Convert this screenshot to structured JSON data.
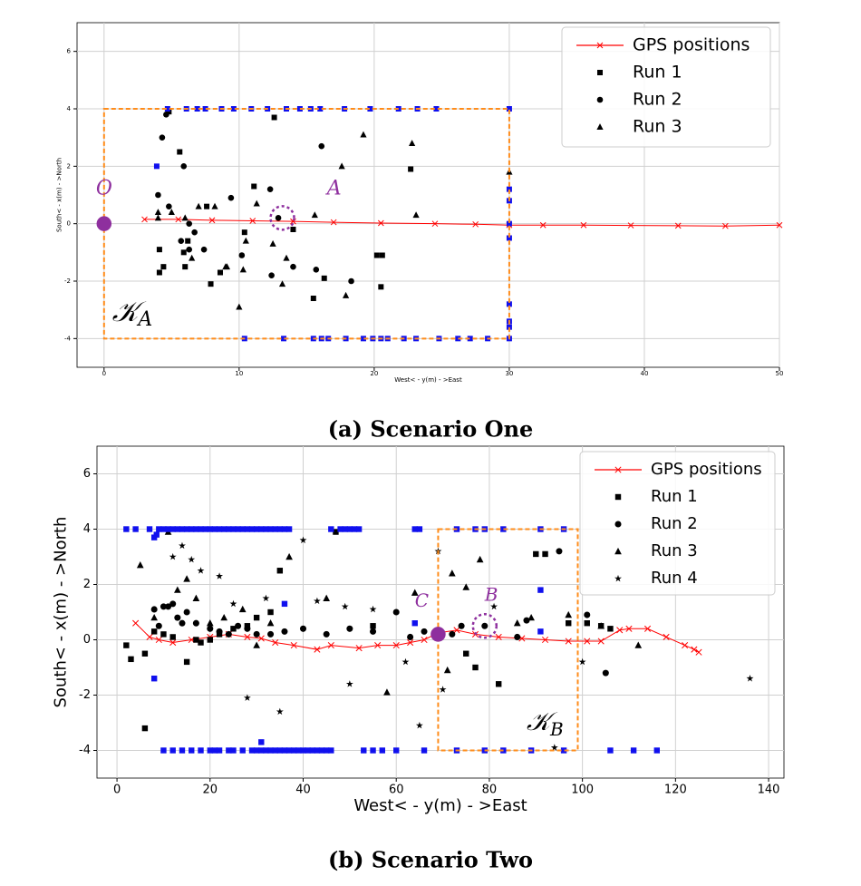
{
  "chart_data": [
    {
      "type": "scatter",
      "caption": "(a) Scenario One",
      "xlabel": "West< - y(m) - >East",
      "ylabel": "South< - x(m) - >North",
      "xlim": [
        -2,
        50
      ],
      "ylim": [
        -5,
        7
      ],
      "xticks": [
        0,
        10,
        20,
        30,
        40,
        50
      ],
      "yticks": [
        -4,
        -2,
        0,
        2,
        4,
        6
      ],
      "grid": true,
      "legend": "upper right",
      "series": [
        {
          "name": "GPS positions",
          "color": "#ff0000",
          "marker": "x",
          "line": true,
          "x": [
            3,
            5.5,
            8,
            11,
            14,
            17,
            20.5,
            24.5,
            27.5,
            30,
            32.5,
            35.5,
            39,
            42.5,
            46,
            50
          ],
          "values": [
            0.15,
            0.15,
            0.12,
            0.1,
            0.08,
            0.05,
            0.02,
            0,
            -0.02,
            -0.05,
            -0.05,
            -0.05,
            -0.06,
            -0.07,
            -0.08,
            -0.05
          ]
        },
        {
          "name": "Run 1",
          "color": "#000000",
          "marker": "square",
          "x": [
            4.8,
            5.6,
            6.2,
            5.9,
            4.1,
            4.4,
            4.1,
            6,
            7.6,
            7.9,
            8.6,
            11.1,
            12.6,
            14,
            15.5,
            16.3,
            20.2,
            20.6,
            20.5,
            22.7,
            10.4
          ],
          "values": [
            3.9,
            2.5,
            -0.6,
            -1,
            -0.9,
            -1.5,
            -1.7,
            -1.5,
            0.6,
            -2.1,
            -1.7,
            1.3,
            3.7,
            -0.2,
            -2.6,
            -1.9,
            -1.1,
            -1.1,
            -2.2,
            1.9,
            -0.3
          ]
        },
        {
          "name": "Run 2",
          "color": "#000000",
          "marker": "circle",
          "x": [
            4.3,
            4,
            4.8,
            5.9,
            6.3,
            6.7,
            5.7,
            6.3,
            7.4,
            9.4,
            10.2,
            12.4,
            12.9,
            12.3,
            14,
            15.7,
            16.1,
            18.3,
            4.6
          ],
          "values": [
            3,
            1,
            0.6,
            2,
            0,
            -0.3,
            -0.6,
            -0.9,
            -0.9,
            0.9,
            -1.1,
            -1.8,
            0.2,
            1.2,
            -1.5,
            -1.6,
            2.7,
            -2,
            3.8
          ]
        },
        {
          "name": "Run 3",
          "color": "#000000",
          "marker": "triangle",
          "x": [
            4,
            4,
            5,
            6,
            7,
            6.5,
            8.2,
            9,
            10,
            10.3,
            10.5,
            11.3,
            12.5,
            13.2,
            13.5,
            15.6,
            17.9,
            19.2,
            17.6,
            22.8,
            23.1,
            30,
            9.1
          ],
          "values": [
            0.4,
            0.2,
            0.4,
            0.2,
            0.6,
            -1.2,
            0.6,
            -1.5,
            -2.9,
            -1.6,
            -0.6,
            0.7,
            -0.7,
            -2.1,
            -1.2,
            0.3,
            -2.5,
            3.1,
            2,
            2.8,
            0.3,
            1.8,
            -1.5
          ]
        },
        {
          "color": "#1010ee",
          "marker": "square",
          "x": [
            4.7,
            6.1,
            6.9,
            7.5,
            8.7,
            9.6,
            10.9,
            12.1,
            13.5,
            14.5,
            15.3,
            16,
            17.8,
            19.7,
            21.8,
            23.2,
            24.6,
            10.4,
            13.3,
            15.5,
            16.1,
            16.6,
            17.9,
            19.2,
            19.9,
            20.5,
            21,
            22.2,
            23.1,
            24.8,
            26.2,
            27.1,
            28.4,
            30,
            30,
            30,
            30,
            30,
            30,
            30,
            30,
            30,
            3.9
          ],
          "values": [
            4,
            4,
            4,
            4,
            4,
            4,
            4,
            4,
            4,
            4,
            4,
            4,
            4,
            4,
            4,
            4,
            4,
            -4,
            -4,
            -4,
            -4,
            -4,
            -4,
            -4,
            -4,
            -4,
            -4,
            -4,
            -4,
            -4,
            -4,
            -4,
            -4,
            4,
            1.2,
            0.8,
            0,
            -0.5,
            -2.8,
            -3.4,
            -3.6,
            -4,
            2
          ]
        }
      ],
      "highlights": [
        {
          "shape": "box",
          "x": [
            0,
            30
          ],
          "y": [
            -4,
            4
          ],
          "color": "#ff8c1a"
        },
        {
          "shape": "dot",
          "x": 0,
          "y": 0,
          "color": "#8e2f9e"
        },
        {
          "shape": "ring",
          "x": 13.2,
          "y": 0.2,
          "color": "#8e2f9e"
        }
      ],
      "annotations": [
        {
          "text": "O",
          "x": -0.6,
          "y": 1.2,
          "color": "#8e2f9e"
        },
        {
          "text": "A",
          "x": 16.5,
          "y": 1.2,
          "color": "#8e2f9e"
        },
        {
          "text": "𝒦",
          "sub": "A",
          "x": 0.6,
          "y": -3.1,
          "color": "#000000"
        }
      ]
    },
    {
      "type": "scatter",
      "caption": "(b) Scenario Two",
      "xlabel": "West< - y(m) - >East",
      "ylabel": "South< - x(m) - >North",
      "xlim": [
        -4.3,
        143.3
      ],
      "ylim": [
        -5,
        7
      ],
      "xticks": [
        0,
        20,
        40,
        60,
        80,
        100,
        120,
        140
      ],
      "yticks": [
        -4,
        -2,
        0,
        2,
        4,
        6
      ],
      "grid": true,
      "legend": "upper right",
      "series": [
        {
          "name": "GPS positions",
          "color": "#ff0000",
          "marker": "x",
          "line": true,
          "x": [
            4,
            7,
            9,
            12,
            16,
            20,
            24,
            28,
            31,
            34,
            38,
            43,
            46,
            52,
            56,
            60,
            63,
            66,
            69,
            73,
            77,
            82,
            87,
            92,
            97,
            101,
            104,
            108,
            110,
            114,
            118,
            122,
            124,
            125
          ],
          "values": [
            0.6,
            0.1,
            0,
            -0.1,
            0,
            0.1,
            0.2,
            0.1,
            0.05,
            -0.1,
            -0.2,
            -0.35,
            -0.2,
            -0.3,
            -0.2,
            -0.2,
            -0.1,
            0,
            0.25,
            0.35,
            0.2,
            0.1,
            0.05,
            0,
            -0.05,
            -0.05,
            -0.05,
            0.35,
            0.4,
            0.4,
            0.1,
            -0.2,
            -0.35,
            -0.45
          ]
        },
        {
          "name": "Run 1",
          "color": "#000000",
          "marker": "square",
          "x": [
            2,
            3,
            6,
            6,
            8,
            10,
            12,
            15,
            17,
            18,
            20,
            22,
            25,
            28,
            30,
            33,
            35,
            47,
            55,
            75,
            77,
            82,
            90,
            92,
            97,
            101,
            104,
            106
          ],
          "values": [
            -0.2,
            -0.7,
            -3.2,
            -0.5,
            0.3,
            0.2,
            0.1,
            -0.8,
            0,
            -0.1,
            0,
            0.2,
            0.4,
            0.5,
            0.8,
            1,
            2.5,
            3.9,
            0.5,
            -0.5,
            -1,
            -1.6,
            3.1,
            3.1,
            0.6,
            0.6,
            0.5,
            0.4
          ]
        },
        {
          "name": "Run 2",
          "color": "#000000",
          "marker": "circle",
          "x": [
            8,
            9,
            10,
            11,
            12,
            13,
            14,
            15,
            17,
            20,
            22,
            24,
            26,
            28,
            30,
            33,
            36,
            40,
            45,
            50,
            55,
            60,
            63,
            66,
            72,
            74,
            79,
            86,
            88,
            95,
            101,
            105
          ],
          "values": [
            1.1,
            0.5,
            1.2,
            1.2,
            1.3,
            0.8,
            0.6,
            1,
            0.6,
            0.4,
            0.3,
            0.2,
            0.5,
            0.4,
            0.2,
            0.2,
            0.3,
            0.4,
            0.2,
            0.4,
            0.3,
            1,
            0.1,
            0.3,
            0.2,
            0.5,
            0.5,
            0.1,
            0.7,
            3.2,
            0.9,
            -1.2
          ]
        },
        {
          "name": "Run 3",
          "color": "#000000",
          "marker": "triangle",
          "x": [
            5,
            8,
            11,
            13,
            15,
            17,
            20,
            23,
            27,
            30,
            33,
            37,
            45,
            58,
            64,
            71,
            72,
            75,
            78,
            86,
            89,
            104,
            112,
            97
          ],
          "values": [
            2.7,
            0.8,
            3.9,
            1.8,
            2.2,
            1.5,
            0.6,
            0.8,
            1.1,
            -0.2,
            0.6,
            3,
            1.5,
            -1.9,
            1.7,
            -1.1,
            2.4,
            1.9,
            2.9,
            0.6,
            0.8,
            0.5,
            -0.2,
            0.9
          ]
        },
        {
          "name": "Run 4",
          "color": "#000000",
          "marker": "star",
          "x": [
            12,
            14,
            16,
            18,
            22,
            25,
            28,
            32,
            35,
            40,
            43,
            49,
            50,
            55,
            62,
            65,
            69,
            70,
            94,
            100,
            136,
            81
          ],
          "values": [
            3,
            3.4,
            2.9,
            2.5,
            2.3,
            1.3,
            -2.1,
            1.5,
            -2.6,
            3.6,
            1.4,
            1.2,
            -1.6,
            1.1,
            -0.8,
            -3.1,
            3.2,
            -1.8,
            -3.9,
            -0.8,
            -1.4,
            1.2
          ]
        },
        {
          "color": "#1010ee",
          "marker": "square",
          "x": [
            2,
            4,
            7,
            8,
            8.5,
            9,
            10,
            11,
            12,
            13,
            14,
            15,
            16,
            17,
            18,
            19,
            20,
            21,
            22,
            23,
            24,
            25,
            26,
            27,
            28,
            29,
            30,
            31,
            32,
            33,
            34,
            35,
            36,
            37,
            46,
            48,
            49,
            50,
            51,
            52,
            64,
            65,
            73,
            77,
            79,
            83,
            91,
            96,
            10,
            12,
            14,
            16,
            18,
            20,
            21,
            22,
            24,
            25,
            27,
            29,
            30,
            31,
            32,
            33,
            34,
            35,
            36,
            37,
            38,
            39,
            40,
            41,
            42,
            43,
            44,
            45,
            46,
            53,
            55,
            57,
            60,
            66,
            73,
            79,
            83,
            89,
            96,
            106,
            111,
            116,
            8,
            31,
            36,
            91,
            64,
            91
          ],
          "values": [
            4,
            4,
            4,
            3.7,
            3.8,
            4,
            4,
            4,
            4,
            4,
            4,
            4,
            4,
            4,
            4,
            4,
            4,
            4,
            4,
            4,
            4,
            4,
            4,
            4,
            4,
            4,
            4,
            4,
            4,
            4,
            4,
            4,
            4,
            4,
            4,
            4,
            4,
            4,
            4,
            4,
            4,
            4,
            4,
            4,
            4,
            4,
            4,
            4,
            -4,
            -4,
            -4,
            -4,
            -4,
            -4,
            -4,
            -4,
            -4,
            -4,
            -4,
            -4,
            -4,
            -4,
            -4,
            -4,
            -4,
            -4,
            -4,
            -4,
            -4,
            -4,
            -4,
            -4,
            -4,
            -4,
            -4,
            -4,
            -4,
            -4,
            -4,
            -4,
            -4,
            -4,
            -4,
            -4,
            -4,
            -4,
            -4,
            -4,
            -4,
            -4,
            -1.4,
            -3.7,
            1.3,
            1.8,
            0.6,
            0.3
          ]
        }
      ],
      "highlights": [
        {
          "shape": "box",
          "x": [
            69,
            99
          ],
          "y": [
            -4,
            4
          ],
          "color": "#ff8c1a"
        },
        {
          "shape": "dot",
          "x": 69,
          "y": 0.2,
          "color": "#8e2f9e"
        },
        {
          "shape": "ring",
          "x": 79,
          "y": 0.5,
          "color": "#8e2f9e"
        }
      ],
      "annotations": [
        {
          "text": "C",
          "x": 64,
          "y": 1.4,
          "color": "#8e2f9e"
        },
        {
          "text": "B",
          "x": 79,
          "y": 1.6,
          "color": "#8e2f9e"
        },
        {
          "text": "𝒦",
          "sub": "B",
          "x": 88,
          "y": -3,
          "color": "#000000"
        }
      ]
    }
  ]
}
